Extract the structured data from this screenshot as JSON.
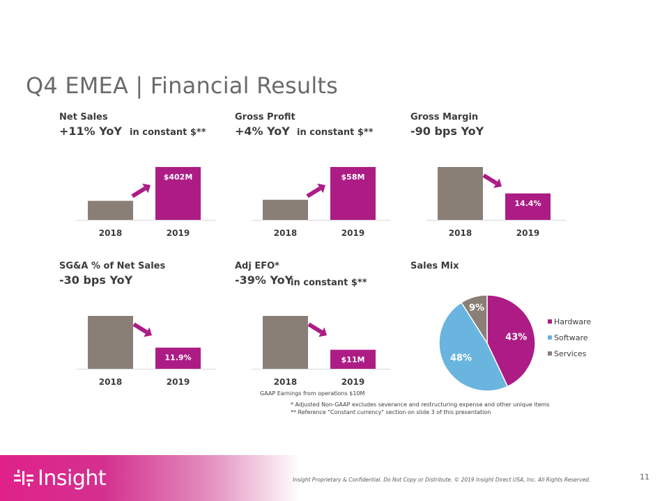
{
  "title": "Q4 EMEA | Financial Results",
  "colors": {
    "gray": "#8a7f77",
    "magenta": "#ad1c85",
    "blue": "#6ab4e0",
    "pie_gray": "#8a7f77"
  },
  "panels": [
    {
      "label": "Net Sales",
      "value": "+11% YoY",
      "note": "in constant $**"
    },
    {
      "label": "Gross Profit",
      "value": "+4% YoY",
      "note": "in constant $**"
    },
    {
      "label": "Gross Margin",
      "value": "-90 bps YoY",
      "note": ""
    },
    {
      "label": "SG&A % of Net Sales",
      "value": "-30 bps YoY",
      "note": ""
    },
    {
      "label": "Adj EFO*",
      "value": "-39% YoY",
      "note": "in constant $**"
    },
    {
      "label": "Sales Mix",
      "value": "",
      "note": ""
    }
  ],
  "chart_data": [
    {
      "type": "bar",
      "categories": [
        "2018",
        "2019"
      ],
      "values": [
        0.36,
        1.0
      ],
      "data_labels": [
        "",
        "$402M"
      ],
      "trend": "up"
    },
    {
      "type": "bar",
      "categories": [
        "2018",
        "2019"
      ],
      "values": [
        0.38,
        1.0
      ],
      "data_labels": [
        "",
        "$58M"
      ],
      "trend": "up"
    },
    {
      "type": "bar",
      "categories": [
        "2018",
        "2019"
      ],
      "values": [
        1.0,
        0.5
      ],
      "data_labels": [
        "",
        "14.4%"
      ],
      "trend": "down"
    },
    {
      "type": "bar",
      "categories": [
        "2018",
        "2019"
      ],
      "values": [
        1.0,
        0.4
      ],
      "data_labels": [
        "",
        "11.9%"
      ],
      "trend": "down"
    },
    {
      "type": "bar",
      "categories": [
        "2018",
        "2019"
      ],
      "values": [
        1.0,
        0.36
      ],
      "data_labels": [
        "",
        "$11M"
      ],
      "trend": "down"
    },
    {
      "type": "pie",
      "slices": [
        {
          "name": "Hardware",
          "value": 43,
          "label": "43%"
        },
        {
          "name": "Software",
          "value": 48,
          "label": "48%"
        },
        {
          "name": "Services",
          "value": 9,
          "label": "9%"
        }
      ],
      "legend": "right"
    }
  ],
  "gaap_note": "GAAP Earnings from operations $10M",
  "footnotes": [
    "*   Adjusted Non-GAAP excludes severance and restructuring  expense and other unique items",
    "** Reference \"Constant currency\" section on slide 3 of this presentation"
  ],
  "footer": {
    "logo": "Insight",
    "confidential": "Insight Proprietary & Confidential. Do Not Copy or Distribute.  © 2019 Insight Direct USA, Inc.  All Rights Reserved.",
    "page_number": "11"
  }
}
